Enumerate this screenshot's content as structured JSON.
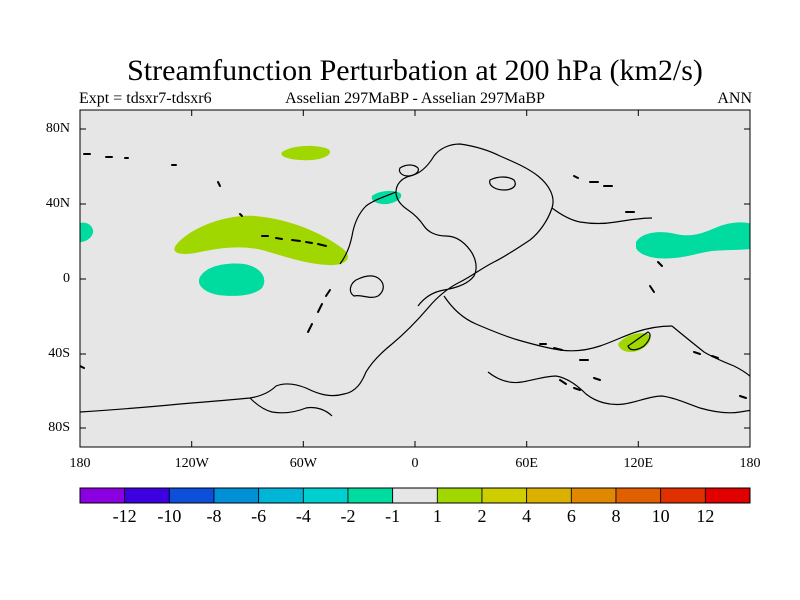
{
  "title": "Streamfunction Perturbation at 200 hPa (km2/s)",
  "subtitle_left": "Expt = tdsxr7-tdsxr6",
  "subtitle_center": "Asselian 297MaBP - Asselian 297MaBP",
  "subtitle_right": "ANN",
  "map": {
    "projection": "cylindrical equidistant",
    "lon_range": [
      -180,
      180
    ],
    "lat_range": [
      -90,
      90
    ],
    "background": "#e6e6e6",
    "lat_labels": [
      {
        "value": 80,
        "text": "80N"
      },
      {
        "value": 40,
        "text": "40N"
      },
      {
        "value": 0,
        "text": "0"
      },
      {
        "value": -40,
        "text": "40S"
      },
      {
        "value": -80,
        "text": "80S"
      }
    ],
    "lon_labels": [
      {
        "value": -180,
        "text": "180"
      },
      {
        "value": -120,
        "text": "120W"
      },
      {
        "value": -60,
        "text": "60W"
      },
      {
        "value": 0,
        "text": "0"
      },
      {
        "value": 60,
        "text": "60E"
      },
      {
        "value": 120,
        "text": "120E"
      },
      {
        "value": 180,
        "text": "180"
      }
    ]
  },
  "anomaly_regions": [
    {
      "name": "anomaly-positive-north-pacific",
      "level": 1,
      "color": "#a0d700"
    },
    {
      "name": "anomaly-positive-polar-atlantic",
      "level": 1,
      "color": "#a0d700"
    },
    {
      "name": "anomaly-positive-australia",
      "level": 1,
      "color": "#a0d700"
    },
    {
      "name": "anomaly-negative-central-pacific",
      "level": -1,
      "color": "#00dba0"
    },
    {
      "name": "anomaly-negative-west-pacific",
      "level": -1,
      "color": "#00dba0"
    },
    {
      "name": "anomaly-negative-far-east",
      "level": -1,
      "color": "#00dba0"
    },
    {
      "name": "anomaly-negative-north-atlantic",
      "level": -1,
      "color": "#00dba0"
    }
  ],
  "colorbar": {
    "colors": [
      "#8b00e0",
      "#3d00e0",
      "#0d4fd9",
      "#0090d6",
      "#00b5d6",
      "#00cfcf",
      "#00dba0",
      "#e6e6e6",
      "#a0d700",
      "#cdcd00",
      "#dbb000",
      "#e08800",
      "#e06000",
      "#e03000",
      "#e00000"
    ],
    "labels": [
      "-12",
      "-10",
      "-8",
      "-6",
      "-4",
      "-2",
      "-1",
      "1",
      "2",
      "4",
      "6",
      "8",
      "10",
      "12"
    ]
  }
}
